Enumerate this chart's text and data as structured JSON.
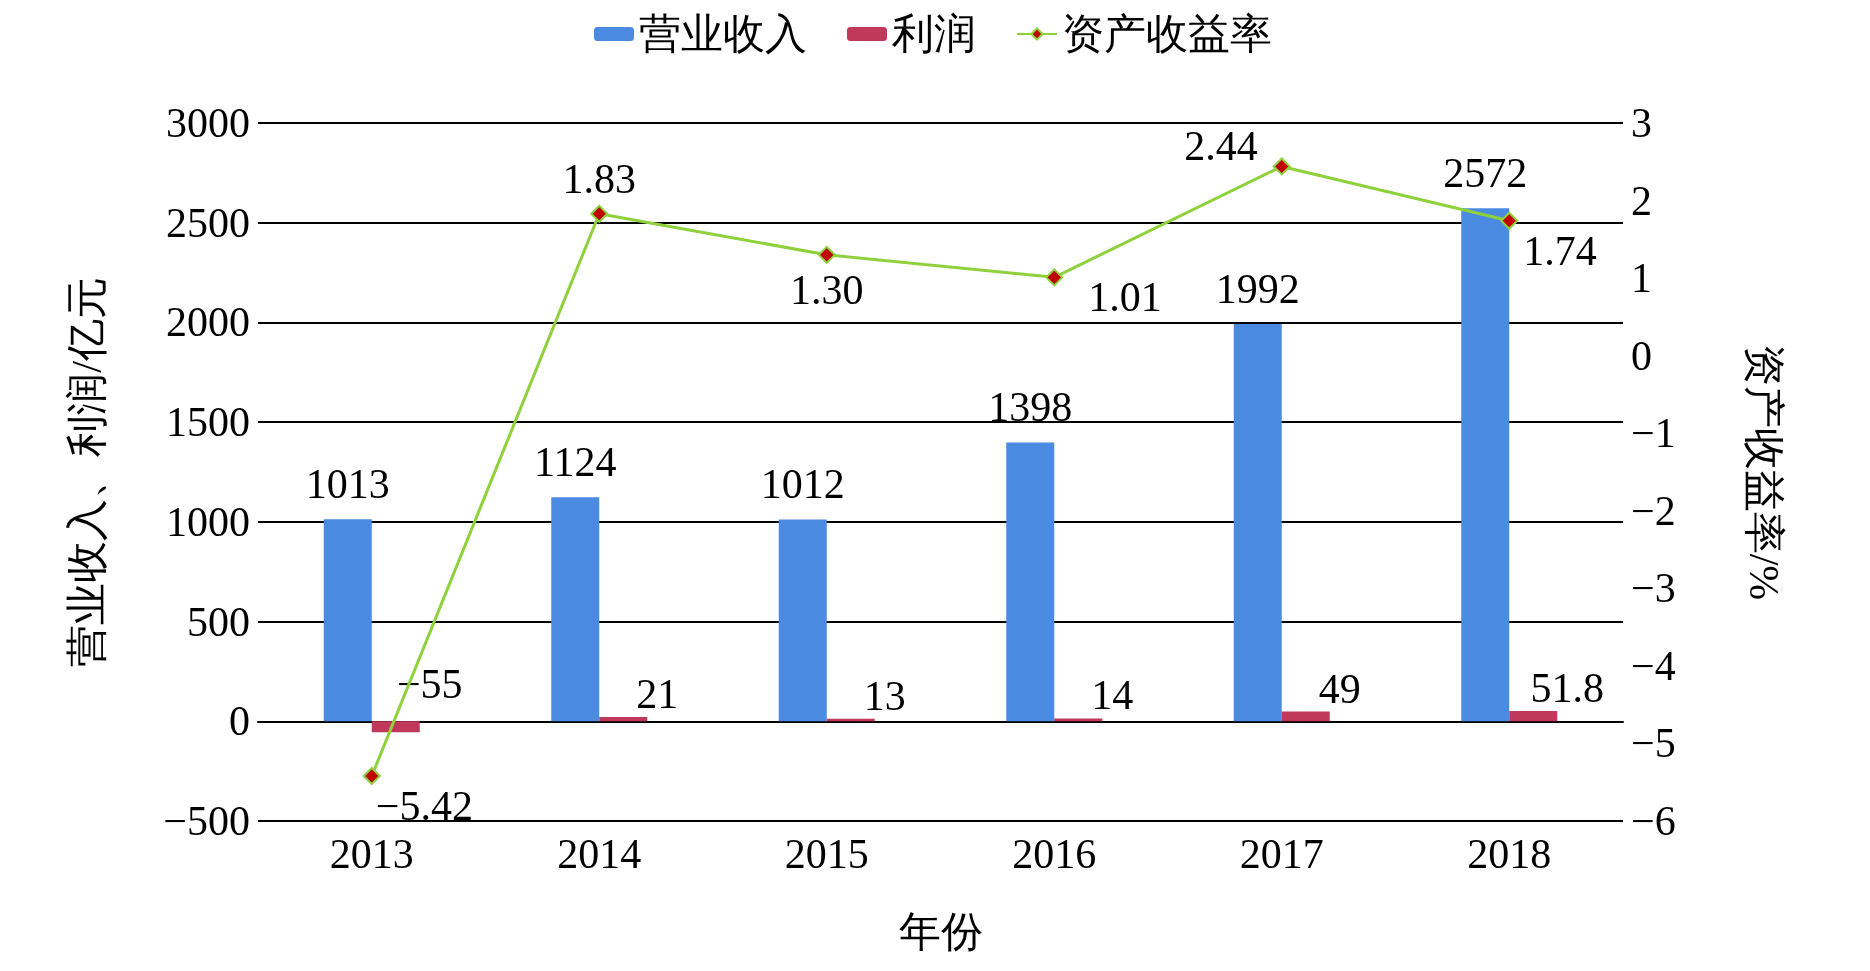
{
  "chart_data": {
    "type": "bar",
    "xlabel": "年份",
    "ylabel": "营业收入、利润/亿元",
    "y2label": "资产收益率/%",
    "categories": [
      "2013",
      "2014",
      "2015",
      "2016",
      "2017",
      "2018"
    ],
    "series": [
      {
        "name": "营业收入",
        "color": "#4a8ae0",
        "values": [
          1013,
          1124,
          1012,
          1398,
          1992,
          2572
        ],
        "value_labels": [
          "1013",
          "1124",
          "1012",
          "1398",
          "1992",
          "2572"
        ]
      },
      {
        "name": "利润",
        "color": "#c0395a",
        "values": [
          -55,
          21,
          13,
          14,
          49,
          51.8
        ],
        "value_labels": [
          "−55",
          "21",
          "13",
          "14",
          "49",
          "51.8"
        ]
      },
      {
        "name": "资产收益率",
        "type": "line",
        "axis": "y2",
        "color": "#8ed13a",
        "marker": "diamond",
        "values": [
          -5.42,
          1.83,
          1.3,
          1.01,
          2.44,
          1.74
        ],
        "value_labels": [
          "−5.42",
          "1.83",
          "1.30",
          "1.01",
          "2.44",
          "1.74"
        ]
      }
    ],
    "ylim": [
      -500,
      3000
    ],
    "yticks": [
      {
        "value": -500,
        "label": "−500"
      },
      0,
      500,
      1000,
      1500,
      2000,
      2500,
      3000
    ],
    "y2lim": [
      -6,
      3
    ],
    "y2ticks": [
      {
        "value": -6,
        "label": "−6"
      },
      {
        "value": -5,
        "label": "−5"
      },
      {
        "value": -4,
        "label": "−4"
      },
      {
        "value": -3,
        "label": "−3"
      },
      {
        "value": -2,
        "label": "−2"
      },
      {
        "value": -1,
        "label": "−1"
      },
      0,
      1,
      2,
      3
    ],
    "grid": "y",
    "legend": "top"
  }
}
